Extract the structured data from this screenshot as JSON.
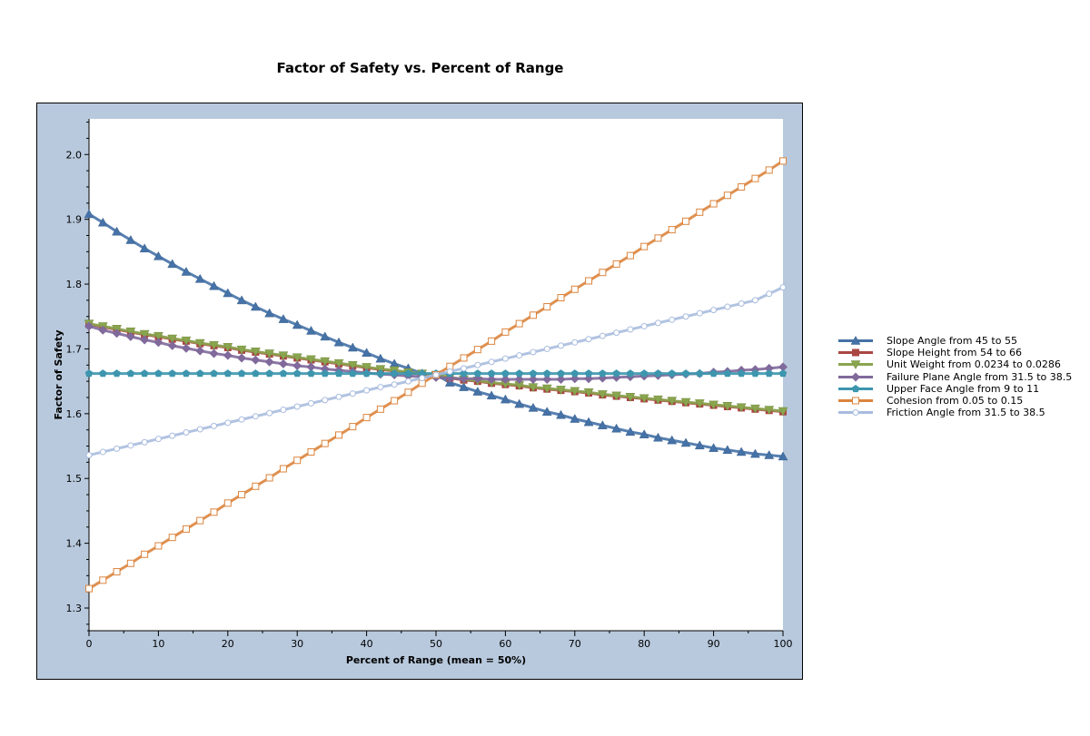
{
  "chart_data": {
    "type": "line",
    "title": "Factor of Safety vs. Percent of Range",
    "xlabel": "Percent of Range (mean = 50%)",
    "ylabel": "Factor of Safety",
    "xlim": [
      0,
      100
    ],
    "ylim": [
      1.265,
      2.055
    ],
    "xticks": [
      0,
      10,
      20,
      30,
      40,
      50,
      60,
      70,
      80,
      90,
      100
    ],
    "yticks": [
      1.3,
      1.4,
      1.5,
      1.6,
      1.7,
      1.8,
      1.9,
      2.0
    ],
    "grid": false,
    "legend_position": "right",
    "x": [
      0,
      2,
      4,
      6,
      8,
      10,
      12,
      14,
      16,
      18,
      20,
      22,
      24,
      26,
      28,
      30,
      32,
      34,
      36,
      38,
      40,
      42,
      44,
      46,
      48,
      50,
      52,
      54,
      56,
      58,
      60,
      62,
      64,
      66,
      68,
      70,
      72,
      74,
      76,
      78,
      80,
      82,
      84,
      86,
      88,
      90,
      92,
      94,
      96,
      98,
      100
    ],
    "series": [
      {
        "name": "Slope Angle from 45 to 55",
        "color": "#4572a7",
        "marker": "triangle-up",
        "values": [
          1.908,
          1.895,
          1.881,
          1.868,
          1.855,
          1.843,
          1.831,
          1.819,
          1.808,
          1.797,
          1.786,
          1.775,
          1.765,
          1.755,
          1.746,
          1.737,
          1.728,
          1.719,
          1.71,
          1.702,
          1.694,
          1.685,
          1.677,
          1.67,
          1.662,
          1.66,
          1.648,
          1.641,
          1.634,
          1.628,
          1.622,
          1.615,
          1.609,
          1.603,
          1.598,
          1.592,
          1.587,
          1.582,
          1.577,
          1.572,
          1.568,
          1.563,
          1.559,
          1.555,
          1.551,
          1.547,
          1.544,
          1.541,
          1.538,
          1.536,
          1.534
        ]
      },
      {
        "name": "Slope Height from 54 to 66",
        "color": "#aa4643",
        "marker": "square",
        "values": [
          1.738,
          1.734,
          1.73,
          1.726,
          1.722,
          1.719,
          1.715,
          1.712,
          1.708,
          1.705,
          1.702,
          1.698,
          1.695,
          1.692,
          1.689,
          1.686,
          1.683,
          1.68,
          1.677,
          1.674,
          1.671,
          1.668,
          1.666,
          1.663,
          1.661,
          1.66,
          1.655,
          1.652,
          1.65,
          1.647,
          1.645,
          1.643,
          1.64,
          1.638,
          1.636,
          1.634,
          1.632,
          1.629,
          1.627,
          1.625,
          1.623,
          1.621,
          1.619,
          1.617,
          1.615,
          1.613,
          1.611,
          1.609,
          1.607,
          1.605,
          1.603
        ]
      },
      {
        "name": "Unit Weight from 0.0234 to 0.0286",
        "color": "#89a54e",
        "marker": "triangle-down",
        "values": [
          1.739,
          1.735,
          1.731,
          1.727,
          1.723,
          1.72,
          1.716,
          1.713,
          1.709,
          1.706,
          1.703,
          1.699,
          1.696,
          1.693,
          1.69,
          1.687,
          1.684,
          1.681,
          1.678,
          1.675,
          1.672,
          1.669,
          1.667,
          1.664,
          1.662,
          1.66,
          1.656,
          1.653,
          1.651,
          1.648,
          1.646,
          1.644,
          1.641,
          1.639,
          1.637,
          1.635,
          1.633,
          1.63,
          1.628,
          1.626,
          1.624,
          1.622,
          1.62,
          1.618,
          1.616,
          1.614,
          1.612,
          1.61,
          1.608,
          1.606,
          1.604
        ]
      },
      {
        "name": "Failure Plane Angle from 31.5 to 38.5",
        "color": "#80699b",
        "marker": "diamond",
        "values": [
          1.735,
          1.729,
          1.724,
          1.719,
          1.714,
          1.71,
          1.705,
          1.701,
          1.697,
          1.693,
          1.69,
          1.686,
          1.683,
          1.68,
          1.677,
          1.674,
          1.672,
          1.669,
          1.667,
          1.665,
          1.663,
          1.661,
          1.66,
          1.658,
          1.657,
          1.656,
          1.655,
          1.654,
          1.654,
          1.653,
          1.653,
          1.653,
          1.653,
          1.653,
          1.653,
          1.654,
          1.654,
          1.655,
          1.656,
          1.657,
          1.658,
          1.659,
          1.66,
          1.661,
          1.662,
          1.664,
          1.665,
          1.667,
          1.668,
          1.67,
          1.672
        ]
      },
      {
        "name": "Upper Face Angle from 9 to 11",
        "color": "#3d96ae",
        "marker": "pentagon",
        "values": [
          1.662,
          1.662,
          1.662,
          1.662,
          1.662,
          1.662,
          1.662,
          1.662,
          1.662,
          1.662,
          1.662,
          1.662,
          1.662,
          1.662,
          1.662,
          1.662,
          1.662,
          1.662,
          1.662,
          1.662,
          1.662,
          1.662,
          1.662,
          1.662,
          1.662,
          1.662,
          1.662,
          1.662,
          1.662,
          1.662,
          1.662,
          1.662,
          1.662,
          1.662,
          1.662,
          1.662,
          1.662,
          1.662,
          1.662,
          1.662,
          1.662,
          1.662,
          1.662,
          1.662,
          1.662,
          1.662,
          1.662,
          1.662,
          1.662,
          1.662,
          1.662
        ]
      },
      {
        "name": "Cohesion from 0.05 to 0.15",
        "color": "#db843d",
        "marker": "square-open",
        "values": [
          1.33,
          1.343,
          1.356,
          1.369,
          1.383,
          1.396,
          1.409,
          1.422,
          1.435,
          1.448,
          1.462,
          1.475,
          1.488,
          1.501,
          1.515,
          1.528,
          1.541,
          1.554,
          1.567,
          1.58,
          1.594,
          1.607,
          1.62,
          1.633,
          1.647,
          1.66,
          1.673,
          1.686,
          1.699,
          1.712,
          1.726,
          1.739,
          1.752,
          1.765,
          1.779,
          1.792,
          1.805,
          1.818,
          1.831,
          1.844,
          1.858,
          1.871,
          1.884,
          1.897,
          1.911,
          1.924,
          1.937,
          1.95,
          1.963,
          1.976,
          1.99
        ]
      },
      {
        "name": "Friction Angle from 31.5 to 38.5",
        "color": "#a8bcde",
        "marker": "circle-open",
        "values": [
          1.536,
          1.541,
          1.546,
          1.551,
          1.556,
          1.561,
          1.566,
          1.571,
          1.576,
          1.581,
          1.586,
          1.591,
          1.596,
          1.601,
          1.606,
          1.611,
          1.616,
          1.621,
          1.626,
          1.631,
          1.636,
          1.641,
          1.645,
          1.65,
          1.655,
          1.66,
          1.665,
          1.67,
          1.675,
          1.68,
          1.685,
          1.69,
          1.695,
          1.7,
          1.705,
          1.71,
          1.715,
          1.72,
          1.725,
          1.73,
          1.735,
          1.74,
          1.745,
          1.75,
          1.755,
          1.76,
          1.765,
          1.77,
          1.775,
          1.785,
          1.795
        ]
      }
    ]
  }
}
